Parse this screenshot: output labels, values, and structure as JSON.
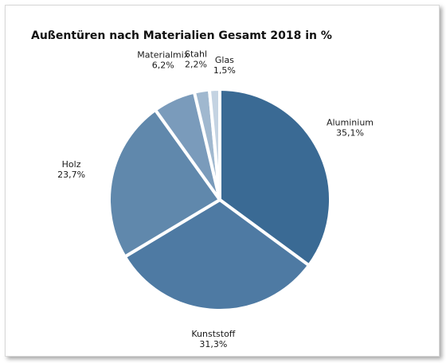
{
  "chart_data": {
    "type": "pie",
    "title": "Außentüren nach Materialien Gesamt 2018 in %",
    "slices": [
      {
        "name": "Aluminium",
        "value": 35.1,
        "value_label": "35,1%",
        "color": "#3a6a94"
      },
      {
        "name": "Kunststoff",
        "value": 31.3,
        "value_label": "31,3%",
        "color": "#4e7aa3"
      },
      {
        "name": "Holz",
        "value": 23.7,
        "value_label": "23,7%",
        "color": "#6088ac"
      },
      {
        "name": "Materialmix",
        "value": 6.2,
        "value_label": "6,2%",
        "color": "#7a9bbb"
      },
      {
        "name": "Stahl",
        "value": 2.2,
        "value_label": "2,2%",
        "color": "#a0b8cf"
      },
      {
        "name": "Glas",
        "value": 1.5,
        "value_label": "1,5%",
        "color": "#c4d3e2"
      }
    ],
    "start_angle_deg": 0,
    "direction": "clockwise",
    "legend": "none",
    "data_labels": "outside"
  }
}
